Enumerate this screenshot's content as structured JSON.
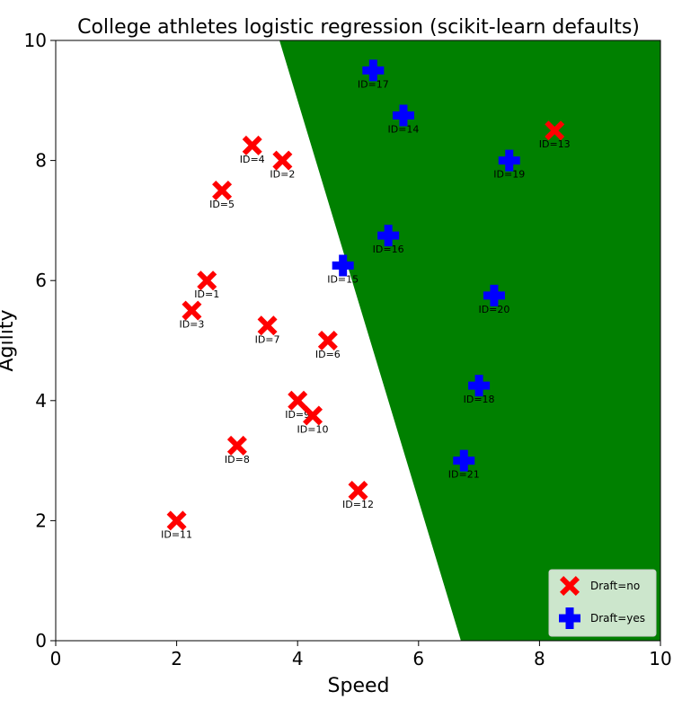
{
  "chart_data": {
    "type": "scatter",
    "title": "College athletes logistic regression (scikit-learn defaults)",
    "xlabel": "Speed",
    "ylabel": "Agility",
    "xlim": [
      0,
      10
    ],
    "ylim": [
      0,
      10
    ],
    "xticks": [
      "0",
      "2",
      "4",
      "6",
      "8",
      "10"
    ],
    "yticks": [
      "0",
      "2",
      "4",
      "6",
      "8",
      "10"
    ],
    "grid": false,
    "legend_position": "bottom-right",
    "decision_region": {
      "color": "#008000",
      "boundary": [
        [
          3.7,
          10
        ],
        [
          6.7,
          0
        ]
      ]
    },
    "series": [
      {
        "name": "Draft=no",
        "marker": "X",
        "color": "#ff0000",
        "points": [
          {
            "x": 2.5,
            "y": 6.0,
            "label": "ID=1"
          },
          {
            "x": 3.75,
            "y": 8.0,
            "label": "ID=2"
          },
          {
            "x": 2.25,
            "y": 5.5,
            "label": "ID=3"
          },
          {
            "x": 3.25,
            "y": 8.25,
            "label": "ID=4"
          },
          {
            "x": 2.75,
            "y": 7.5,
            "label": "ID=5"
          },
          {
            "x": 4.5,
            "y": 5.0,
            "label": "ID=6"
          },
          {
            "x": 3.5,
            "y": 5.25,
            "label": "ID=7"
          },
          {
            "x": 3.0,
            "y": 3.25,
            "label": "ID=8"
          },
          {
            "x": 4.0,
            "y": 4.0,
            "label": "ID=9"
          },
          {
            "x": 4.25,
            "y": 3.75,
            "label": "ID=10"
          },
          {
            "x": 2.0,
            "y": 2.0,
            "label": "ID=11"
          },
          {
            "x": 5.0,
            "y": 2.5,
            "label": "ID=12"
          },
          {
            "x": 8.25,
            "y": 8.5,
            "label": "ID=13"
          }
        ]
      },
      {
        "name": "Draft=yes",
        "marker": "P",
        "color": "#0000ff",
        "points": [
          {
            "x": 5.75,
            "y": 8.75,
            "label": "ID=14"
          },
          {
            "x": 4.75,
            "y": 6.25,
            "label": "ID=15"
          },
          {
            "x": 5.5,
            "y": 6.75,
            "label": "ID=16"
          },
          {
            "x": 5.25,
            "y": 9.5,
            "label": "ID=17"
          },
          {
            "x": 7.0,
            "y": 4.25,
            "label": "ID=18"
          },
          {
            "x": 7.5,
            "y": 8.0,
            "label": "ID=19"
          },
          {
            "x": 7.25,
            "y": 5.75,
            "label": "ID=20"
          },
          {
            "x": 6.75,
            "y": 3.0,
            "label": "ID=21"
          }
        ]
      }
    ]
  }
}
